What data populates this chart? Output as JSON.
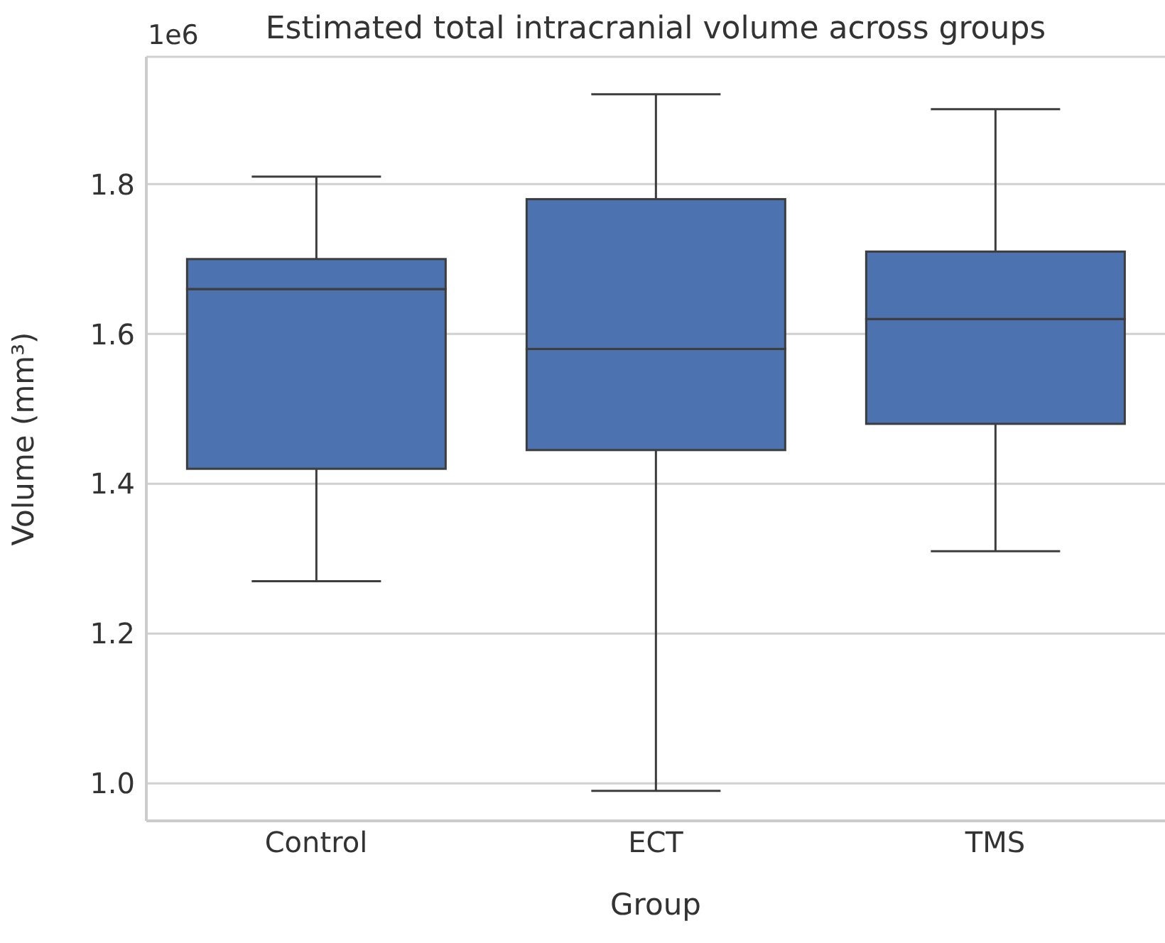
{
  "chart_data": {
    "type": "box",
    "title": "Estimated total intracranial volume across groups",
    "xlabel": "Group",
    "ylabel": "Volume (mm³)",
    "annotations": [
      "1e6"
    ],
    "categories": [
      "Control",
      "ECT",
      "TMS"
    ],
    "color": "#4c72b0",
    "boxes": [
      {
        "low": 1.27,
        "q1": 1.42,
        "median": 1.66,
        "q3": 1.7,
        "high": 1.81
      },
      {
        "low": 0.99,
        "q1": 1.445,
        "median": 1.58,
        "q3": 1.78,
        "high": 1.92
      },
      {
        "low": 1.31,
        "q1": 1.48,
        "median": 1.62,
        "q3": 1.71,
        "high": 1.9
      }
    ],
    "ylim": [
      0.95,
      1.97
    ],
    "yticks": [
      {
        "value": 1.0,
        "label": "1.0"
      },
      {
        "value": 1.2,
        "label": "1.2"
      },
      {
        "value": 1.4,
        "label": "1.4"
      },
      {
        "value": 1.6,
        "label": "1.6"
      },
      {
        "value": 1.8,
        "label": "1.8"
      }
    ],
    "grid": "y"
  }
}
